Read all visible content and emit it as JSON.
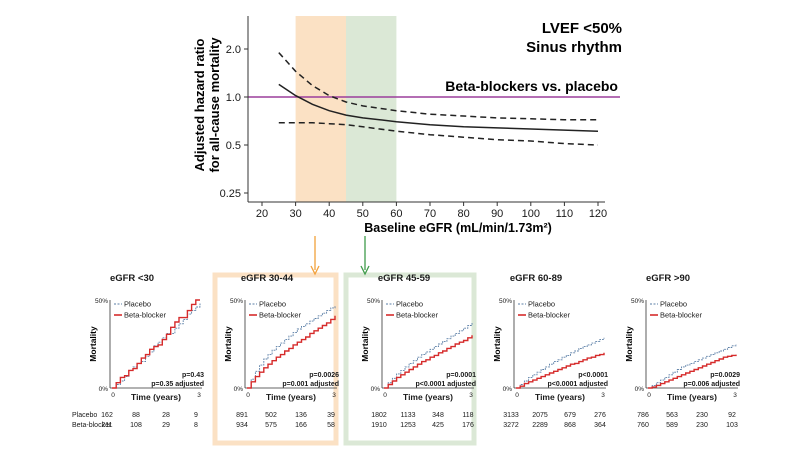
{
  "colors": {
    "placebo": "#5a7ea6",
    "beta": "#d62b2b",
    "reference": "#9b3e9b",
    "band_orange": "#fbe1c4",
    "band_green": "#dbe8d6",
    "arrow_orange": "#f2a03a",
    "arrow_green": "#3f9b4a",
    "axis": "#333333"
  },
  "chart_data": [
    {
      "type": "line",
      "title_line1": "LVEF <50%",
      "title_line2": "Sinus rhythm",
      "comparison_label": "Beta-blockers vs. placebo",
      "xlabel": "Baseline eGFR (mL/min/1.73m²)",
      "ylabel_line1": "Adjusted hazard ratio",
      "ylabel_line2": "for all-cause mortality",
      "xlim": [
        18,
        125
      ],
      "ylim": [
        0.22,
        2.5
      ],
      "yscale": "log",
      "x_ticks": [
        20,
        30,
        40,
        50,
        60,
        70,
        80,
        90,
        100,
        110,
        120
      ],
      "x_tick_labels": [
        "20",
        "30",
        "40",
        "50",
        "60",
        "70",
        "80",
        "90",
        "100",
        "110",
        "120"
      ],
      "y_ticks": [
        2.0,
        1.0,
        0.5,
        0.25
      ],
      "y_tick_labels": [
        "2.0",
        "1.0",
        "0.5",
        "0.25"
      ],
      "reference_line": 1.0,
      "highlight_bands": [
        {
          "name": "eGFR 30-44",
          "from": 30,
          "to": 45,
          "color": "orange"
        },
        {
          "name": "eGFR 45-59",
          "from": 45,
          "to": 60,
          "color": "green"
        }
      ],
      "series": [
        {
          "name": "Adjusted HR",
          "style": "solid",
          "x": [
            25,
            30,
            35,
            40,
            45,
            50,
            55,
            60,
            70,
            80,
            90,
            100,
            110,
            120
          ],
          "y": [
            1.2,
            1.02,
            0.9,
            0.82,
            0.77,
            0.74,
            0.72,
            0.7,
            0.67,
            0.65,
            0.64,
            0.63,
            0.62,
            0.61
          ]
        },
        {
          "name": "Upper 95% CI",
          "style": "dashed",
          "x": [
            25,
            30,
            35,
            40,
            45,
            50,
            55,
            60,
            70,
            80,
            90,
            100,
            110,
            120
          ],
          "y": [
            1.9,
            1.45,
            1.18,
            1.02,
            0.93,
            0.88,
            0.85,
            0.82,
            0.78,
            0.76,
            0.74,
            0.73,
            0.72,
            0.72
          ]
        },
        {
          "name": "Lower 95% CI",
          "style": "dashed",
          "x": [
            25,
            30,
            35,
            40,
            45,
            50,
            55,
            60,
            70,
            80,
            90,
            100,
            110,
            120
          ],
          "y": [
            0.69,
            0.69,
            0.69,
            0.68,
            0.67,
            0.65,
            0.63,
            0.61,
            0.58,
            0.56,
            0.54,
            0.53,
            0.51,
            0.5
          ]
        }
      ]
    },
    {
      "panels": [
        {
          "title": "eGFR <30",
          "highlight": "none",
          "placebo_y": [
            0,
            4,
            8,
            13,
            20,
            24,
            28,
            30,
            36,
            41,
            48,
            52,
            57,
            62,
            62,
            68,
            73,
            78,
            84,
            88,
            92,
            96
          ],
          "beta_y": [
            0,
            6,
            12,
            14,
            20,
            22,
            28,
            34,
            38,
            44,
            47,
            49,
            55,
            61,
            69,
            75,
            80,
            80,
            88,
            95,
            100,
            100
          ],
          "p1": "p=0.43",
          "p2": "p=0.35 adjusted",
          "risk_placebo": [
            "162",
            "88",
            "28",
            "9"
          ],
          "risk_beta": [
            "211",
            "108",
            "29",
            "8"
          ]
        },
        {
          "title": "eGFR 30-44",
          "highlight": "orange",
          "placebo_y": [
            0,
            10,
            19,
            26,
            33,
            38,
            43,
            47,
            51,
            55,
            59,
            63,
            67,
            70,
            73,
            76,
            79,
            82,
            85,
            88,
            91,
            94
          ],
          "beta_y": [
            0,
            7,
            13,
            18,
            23,
            27,
            31,
            35,
            38,
            42,
            45,
            49,
            52,
            55,
            58,
            62,
            65,
            68,
            71,
            74,
            78,
            82
          ],
          "p1": "p=0.0026",
          "p2": "p=0.001 adjusted",
          "risk_placebo": [
            "891",
            "502",
            "136",
            "39"
          ],
          "risk_beta": [
            "934",
            "575",
            "166",
            "58"
          ]
        },
        {
          "title": "eGFR 45-59",
          "highlight": "green",
          "placebo_y": [
            0,
            6,
            11,
            16,
            20,
            24,
            28,
            31,
            35,
            38,
            41,
            44,
            47,
            50,
            53,
            56,
            59,
            62,
            65,
            68,
            71,
            74
          ],
          "beta_y": [
            0,
            4,
            8,
            12,
            15,
            18,
            21,
            24,
            27,
            30,
            32,
            35,
            37,
            40,
            42,
            45,
            47,
            50,
            52,
            54,
            57,
            60
          ],
          "p1": "p=0.0001",
          "p2": "p<0.0001 adjusted",
          "risk_placebo": [
            "1802",
            "1133",
            "348",
            "118"
          ],
          "risk_beta": [
            "1910",
            "1253",
            "425",
            "176"
          ]
        },
        {
          "title": "eGFR 60-89",
          "highlight": "none",
          "placebo_y": [
            0,
            4,
            8,
            12,
            15,
            18,
            21,
            24,
            27,
            30,
            32,
            35,
            37,
            40,
            42,
            45,
            47,
            49,
            51,
            53,
            55,
            57
          ],
          "beta_y": [
            0,
            2,
            5,
            7,
            9,
            11,
            13,
            15,
            17,
            19,
            21,
            23,
            25,
            27,
            28,
            30,
            32,
            34,
            35,
            37,
            38,
            40
          ],
          "p1": "p<0.0001",
          "p2": "p<0.0001 adjusted",
          "risk_placebo": [
            "3133",
            "2075",
            "679",
            "276"
          ],
          "risk_beta": [
            "3272",
            "2289",
            "868",
            "364"
          ]
        },
        {
          "title": "eGFR >90",
          "highlight": "none",
          "placebo_y": [
            0,
            3,
            6,
            9,
            12,
            15,
            18,
            21,
            24,
            26,
            28,
            30,
            32,
            34,
            36,
            38,
            40,
            42,
            44,
            46,
            48,
            50
          ],
          "beta_y": [
            0,
            1,
            3,
            5,
            7,
            9,
            11,
            13,
            15,
            17,
            19,
            21,
            23,
            25,
            27,
            29,
            31,
            33,
            35,
            36,
            37,
            38
          ],
          "p1": "p=0.0029",
          "p2": "p=0.006 adjusted",
          "risk_placebo": [
            "786",
            "563",
            "230",
            "92"
          ],
          "risk_beta": [
            "760",
            "589",
            "230",
            "103"
          ]
        }
      ],
      "legend_placebo": "Placebo",
      "legend_beta": "Beta-blocker",
      "ylabel": "Mortality",
      "xlabel": "Time (years)",
      "y_ticks": [
        "0%",
        "50%"
      ],
      "x_ticks": [
        "0",
        "3"
      ],
      "risk_label_placebo": "Placebo",
      "risk_label_beta": "Beta-blocker"
    }
  ]
}
